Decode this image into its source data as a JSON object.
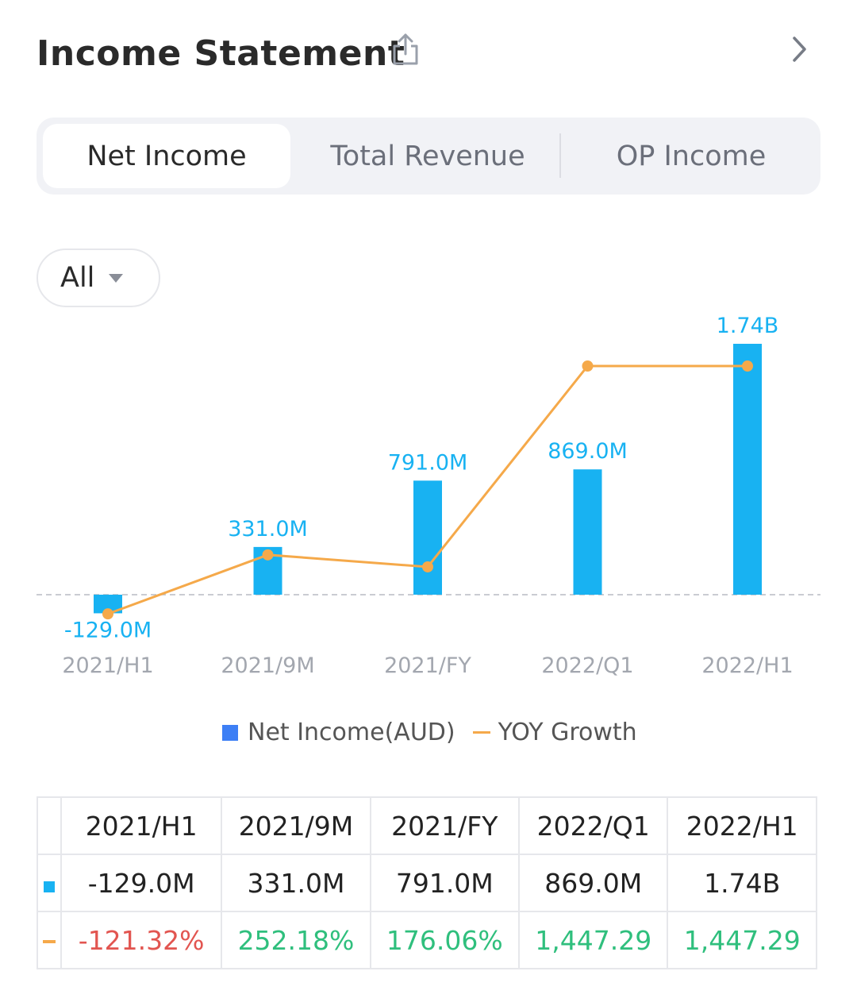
{
  "header": {
    "title": "Income Statement",
    "share_icon": "share-icon",
    "chevron_icon": "chevron-right-icon"
  },
  "tabs": [
    {
      "label": "Net Income",
      "active": true
    },
    {
      "label": "Total Revenue",
      "active": false
    },
    {
      "label": "OP Income",
      "active": false
    }
  ],
  "filter": {
    "selected": "All"
  },
  "colors": {
    "bar": "#18b2f2",
    "line": "#f5a94a",
    "legend_bar": "#3d7ff5",
    "negative": "#e25550",
    "positive": "#2fbf7d"
  },
  "chart_data": {
    "type": "bar",
    "categories": [
      "2021/H1",
      "2021/9M",
      "2021/FY",
      "2022/Q1",
      "2022/H1"
    ],
    "series": [
      {
        "name": "Net Income(AUD)",
        "type": "bar",
        "values": [
          -129.0,
          331.0,
          791.0,
          869.0,
          1740.0
        ],
        "labels": [
          "-129.0M",
          "331.0M",
          "791.0M",
          "869.0M",
          "1.74B"
        ]
      },
      {
        "name": "YOY Growth",
        "type": "line",
        "values": [
          -121.32,
          252.18,
          176.06,
          1447.29,
          1447.29
        ]
      }
    ],
    "unit": "M"
  },
  "legend": {
    "bar_label": "Net Income(AUD)",
    "line_label": "YOY Growth"
  },
  "table": {
    "headers": [
      "2021/H1",
      "2021/9M",
      "2021/FY",
      "2022/Q1",
      "2022/H1"
    ],
    "income_row": [
      "-129.0M",
      "331.0M",
      "791.0M",
      "869.0M",
      "1.74B"
    ],
    "growth_row": [
      "-121.32%",
      "252.18%",
      "176.06%",
      "1,447.29",
      "1,447.29"
    ]
  }
}
